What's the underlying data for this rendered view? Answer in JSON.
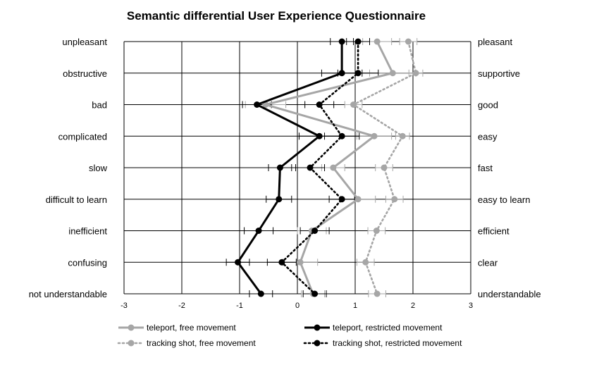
{
  "chart_data": {
    "type": "line",
    "title": "Semantic differential User Experience Questionnaire",
    "xlim": [
      -3,
      3
    ],
    "x_ticks": [
      "-3",
      "-2",
      "-1",
      "0",
      "1",
      "2",
      "3"
    ],
    "left_labels": [
      "unpleasant",
      "obstructive",
      "bad",
      "complicated",
      "slow",
      "difficult to learn",
      "inefficient",
      "confusing",
      "not understandable"
    ],
    "right_labels": [
      "pleasant",
      "supportive",
      "good",
      "easy",
      "fast",
      "easy to learn",
      "efficient",
      "clear",
      "understandable"
    ],
    "grid": true,
    "legend_position": "bottom",
    "series": [
      {
        "name": "teleport, free movement",
        "color": "#a6a6a6",
        "line_style": "solid",
        "line_width": "bold",
        "values": [
          1.38,
          1.65,
          -0.55,
          1.33,
          0.62,
          1.05,
          0.25,
          0.05,
          0.27
        ],
        "error": [
          0.25,
          0.4,
          0.35,
          0.3,
          0.2,
          0.3,
          0.25,
          0.3,
          0.2
        ]
      },
      {
        "name": "teleport, restricted movement",
        "color": "#000000",
        "line_style": "solid",
        "line_width": "bold",
        "values": [
          0.77,
          0.77,
          -0.7,
          0.38,
          -0.3,
          -0.32,
          -0.67,
          -1.03,
          -0.63
        ],
        "error": [
          0.2,
          0.35,
          0.25,
          0.35,
          0.2,
          0.22,
          0.25,
          0.2,
          0.2
        ]
      },
      {
        "name": "tracking shot, free movement",
        "color": "#a6a6a6",
        "line_style": "dotted",
        "line_width": "bold",
        "values": [
          1.92,
          2.05,
          0.97,
          1.82,
          1.5,
          1.68,
          1.37,
          1.18,
          1.38
        ],
        "error": [
          0.15,
          0.12,
          0.15,
          0.12,
          0.15,
          0.15,
          0.15,
          0.15,
          0.15
        ]
      },
      {
        "name": "tracking shot, restricted movement",
        "color": "#000000",
        "line_style": "dotted",
        "line_width": "bold",
        "values": [
          1.05,
          1.05,
          0.38,
          0.77,
          0.22,
          0.77,
          0.3,
          -0.27,
          0.3
        ],
        "error": [
          0.2,
          0.35,
          0.25,
          0.3,
          0.25,
          0.22,
          0.25,
          0.25,
          0.2
        ]
      }
    ]
  }
}
